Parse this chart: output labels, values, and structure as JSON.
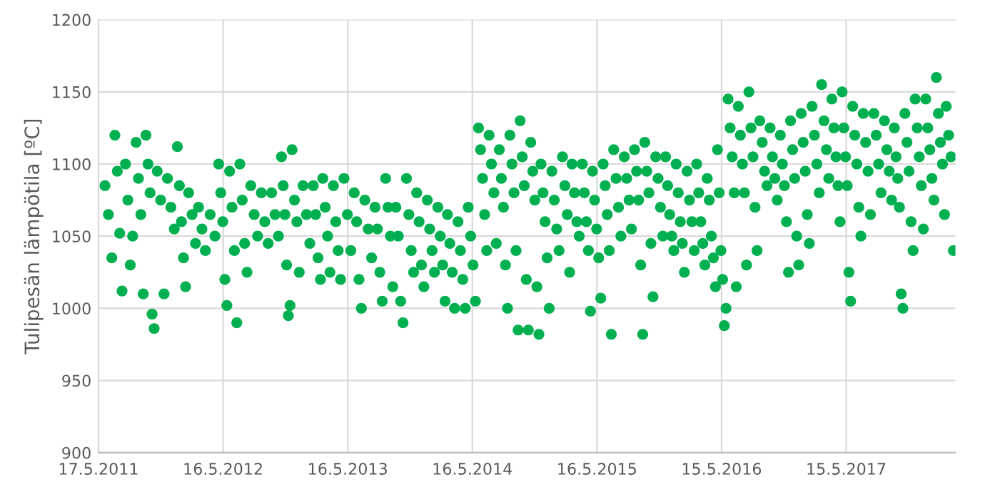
{
  "chart_data": {
    "type": "scatter",
    "ylabel": "Tulipesän lämpötila [ºC]",
    "xlim": [
      "2011-05-17",
      "2018-03-31"
    ],
    "xticks": [
      {
        "value": "2011-05-17",
        "label": "17.5.2011"
      },
      {
        "value": "2012-05-16",
        "label": "16.5.2012"
      },
      {
        "value": "2013-05-16",
        "label": "16.5.2013"
      },
      {
        "value": "2014-05-16",
        "label": "16.5.2014"
      },
      {
        "value": "2015-05-16",
        "label": "16.5.2015"
      },
      {
        "value": "2016-05-15",
        "label": "15.5.2016"
      },
      {
        "value": "2017-05-15",
        "label": "15.5.2017"
      }
    ],
    "ylim": [
      900,
      1200
    ],
    "yticks": [
      900,
      950,
      1000,
      1050,
      1100,
      1150,
      1200
    ],
    "grid": true,
    "marker": "circle",
    "series": [
      {
        "color": "#00b050",
        "x": [
          "2011-06-05",
          "2011-06-15",
          "2011-06-25",
          "2011-07-04",
          "2011-07-11",
          "2011-07-18",
          "2011-07-25",
          "2011-08-04",
          "2011-08-11",
          "2011-08-18",
          "2011-08-25",
          "2011-09-04",
          "2011-09-11",
          "2011-09-18",
          "2011-09-25",
          "2011-10-03",
          "2011-10-09",
          "2011-10-15",
          "2011-10-21",
          "2011-10-27",
          "2011-11-05",
          "2011-11-15",
          "2011-11-25",
          "2011-12-05",
          "2011-12-15",
          "2011-12-25",
          "2012-01-03",
          "2012-01-09",
          "2012-01-15",
          "2012-01-21",
          "2012-01-27",
          "2012-02-05",
          "2012-02-15",
          "2012-02-25",
          "2012-03-05",
          "2012-03-15",
          "2012-03-25",
          "2012-04-08",
          "2012-04-22",
          "2012-05-03",
          "2012-05-09",
          "2012-05-15",
          "2012-05-21",
          "2012-05-27",
          "2012-06-04",
          "2012-06-11",
          "2012-06-18",
          "2012-06-25",
          "2012-07-04",
          "2012-07-11",
          "2012-07-18",
          "2012-07-25",
          "2012-08-05",
          "2012-08-15",
          "2012-08-25",
          "2012-09-05",
          "2012-09-15",
          "2012-09-25",
          "2012-10-05",
          "2012-10-15",
          "2012-10-25",
          "2012-11-03",
          "2012-11-08",
          "2012-11-13",
          "2012-11-18",
          "2012-11-23",
          "2012-11-28",
          "2012-12-04",
          "2012-12-11",
          "2012-12-18",
          "2012-12-25",
          "2013-01-05",
          "2013-01-15",
          "2013-01-25",
          "2013-02-04",
          "2013-02-11",
          "2013-02-18",
          "2013-02-25",
          "2013-03-04",
          "2013-03-11",
          "2013-03-18",
          "2013-03-25",
          "2013-04-04",
          "2013-04-11",
          "2013-04-18",
          "2013-04-25",
          "2013-05-05",
          "2013-05-15",
          "2013-05-25",
          "2013-06-04",
          "2013-06-11",
          "2013-06-18",
          "2013-06-25",
          "2013-07-05",
          "2013-07-15",
          "2013-07-25",
          "2013-08-04",
          "2013-08-11",
          "2013-08-18",
          "2013-08-25",
          "2013-09-04",
          "2013-09-11",
          "2013-09-18",
          "2013-09-25",
          "2013-10-04",
          "2013-10-11",
          "2013-10-18",
          "2013-10-25",
          "2013-11-04",
          "2013-11-11",
          "2013-11-18",
          "2013-11-25",
          "2013-12-04",
          "2013-12-11",
          "2013-12-18",
          "2013-12-25",
          "2014-01-04",
          "2014-01-11",
          "2014-01-18",
          "2014-01-25",
          "2014-02-04",
          "2014-02-11",
          "2014-02-18",
          "2014-02-25",
          "2014-03-04",
          "2014-03-11",
          "2014-03-18",
          "2014-03-25",
          "2014-04-04",
          "2014-04-11",
          "2014-04-18",
          "2014-04-25",
          "2014-05-04",
          "2014-05-11",
          "2014-05-18",
          "2014-05-25",
          "2014-06-03",
          "2014-06-09",
          "2014-06-15",
          "2014-06-21",
          "2014-06-27",
          "2014-07-04",
          "2014-07-11",
          "2014-07-18",
          "2014-07-25",
          "2014-08-03",
          "2014-08-09",
          "2014-08-15",
          "2014-08-21",
          "2014-08-27",
          "2014-09-03",
          "2014-09-09",
          "2014-09-15",
          "2014-09-21",
          "2014-09-27",
          "2014-10-03",
          "2014-10-09",
          "2014-10-15",
          "2014-10-21",
          "2014-10-27",
          "2014-11-03",
          "2014-11-09",
          "2014-11-15",
          "2014-11-21",
          "2014-11-27",
          "2014-12-03",
          "2014-12-09",
          "2014-12-15",
          "2014-12-21",
          "2014-12-27",
          "2015-01-04",
          "2015-01-11",
          "2015-01-18",
          "2015-01-25",
          "2015-02-04",
          "2015-02-11",
          "2015-02-18",
          "2015-02-25",
          "2015-03-04",
          "2015-03-11",
          "2015-03-18",
          "2015-03-25",
          "2015-04-03",
          "2015-04-09",
          "2015-04-15",
          "2015-04-21",
          "2015-04-27",
          "2015-05-03",
          "2015-05-09",
          "2015-05-15",
          "2015-05-21",
          "2015-05-27",
          "2015-06-03",
          "2015-06-09",
          "2015-06-15",
          "2015-06-21",
          "2015-06-27",
          "2015-07-04",
          "2015-07-11",
          "2015-07-18",
          "2015-07-25",
          "2015-08-04",
          "2015-08-11",
          "2015-08-18",
          "2015-08-25",
          "2015-09-03",
          "2015-09-09",
          "2015-09-15",
          "2015-09-21",
          "2015-09-27",
          "2015-10-03",
          "2015-10-09",
          "2015-10-15",
          "2015-10-21",
          "2015-10-27",
          "2015-11-04",
          "2015-11-11",
          "2015-11-18",
          "2015-11-25",
          "2015-12-03",
          "2015-12-09",
          "2015-12-15",
          "2015-12-21",
          "2015-12-27",
          "2016-01-03",
          "2016-01-09",
          "2016-01-15",
          "2016-01-21",
          "2016-01-27",
          "2016-02-04",
          "2016-02-11",
          "2016-02-18",
          "2016-02-25",
          "2016-03-03",
          "2016-03-09",
          "2016-03-15",
          "2016-03-21",
          "2016-03-27",
          "2016-04-03",
          "2016-04-09",
          "2016-04-15",
          "2016-04-21",
          "2016-04-27",
          "2016-05-03",
          "2016-05-08",
          "2016-05-13",
          "2016-05-18",
          "2016-05-23",
          "2016-05-28",
          "2016-06-03",
          "2016-06-09",
          "2016-06-15",
          "2016-06-21",
          "2016-06-27",
          "2016-07-03",
          "2016-07-09",
          "2016-07-15",
          "2016-07-21",
          "2016-07-27",
          "2016-08-03",
          "2016-08-09",
          "2016-08-15",
          "2016-08-21",
          "2016-08-27",
          "2016-09-04",
          "2016-09-11",
          "2016-09-18",
          "2016-09-25",
          "2016-10-04",
          "2016-10-11",
          "2016-10-18",
          "2016-10-25",
          "2016-11-03",
          "2016-11-09",
          "2016-11-15",
          "2016-11-21",
          "2016-11-27",
          "2016-12-03",
          "2016-12-09",
          "2016-12-15",
          "2016-12-21",
          "2016-12-27",
          "2017-01-03",
          "2017-01-09",
          "2017-01-15",
          "2017-01-21",
          "2017-01-27",
          "2017-02-04",
          "2017-02-11",
          "2017-02-18",
          "2017-02-25",
          "2017-03-04",
          "2017-03-11",
          "2017-03-18",
          "2017-03-25",
          "2017-04-03",
          "2017-04-09",
          "2017-04-15",
          "2017-04-21",
          "2017-04-27",
          "2017-05-03",
          "2017-05-08",
          "2017-05-13",
          "2017-05-18",
          "2017-05-23",
          "2017-05-28",
          "2017-06-03",
          "2017-06-09",
          "2017-06-15",
          "2017-06-21",
          "2017-06-27",
          "2017-07-04",
          "2017-07-11",
          "2017-07-18",
          "2017-07-25",
          "2017-08-04",
          "2017-08-11",
          "2017-08-18",
          "2017-08-25",
          "2017-09-04",
          "2017-09-11",
          "2017-09-18",
          "2017-09-25",
          "2017-10-03",
          "2017-10-08",
          "2017-10-13",
          "2017-10-18",
          "2017-10-23",
          "2017-10-28",
          "2017-11-03",
          "2017-11-09",
          "2017-11-15",
          "2017-11-21",
          "2017-11-27",
          "2017-12-03",
          "2017-12-09",
          "2017-12-15",
          "2017-12-21",
          "2017-12-27",
          "2018-01-03",
          "2018-01-09",
          "2018-01-15",
          "2018-01-21",
          "2018-01-27",
          "2018-02-03",
          "2018-02-09",
          "2018-02-15",
          "2018-02-21",
          "2018-02-27",
          "2018-03-04",
          "2018-03-11",
          "2018-03-18",
          "2018-03-25"
        ],
        "values": [
          1085,
          1065,
          1035,
          1120,
          1095,
          1052,
          1012,
          1100,
          1075,
          1030,
          1050,
          1115,
          1090,
          1065,
          1010,
          1120,
          1100,
          1080,
          996,
          986,
          1095,
          1075,
          1010,
          1090,
          1070,
          1055,
          1112,
          1085,
          1060,
          1035,
          1015,
          1080,
          1065,
          1045,
          1070,
          1055,
          1040,
          1065,
          1050,
          1100,
          1080,
          1060,
          1020,
          1002,
          1095,
          1070,
          1040,
          990,
          1100,
          1075,
          1045,
          1025,
          1085,
          1065,
          1050,
          1080,
          1060,
          1045,
          1080,
          1065,
          1050,
          1105,
          1085,
          1065,
          1030,
          995,
          1002,
          1110,
          1075,
          1060,
          1025,
          1085,
          1065,
          1045,
          1085,
          1065,
          1035,
          1020,
          1090,
          1070,
          1050,
          1025,
          1085,
          1060,
          1040,
          1020,
          1090,
          1065,
          1040,
          1080,
          1060,
          1020,
          1000,
          1075,
          1055,
          1035,
          1070,
          1055,
          1025,
          1005,
          1090,
          1070,
          1050,
          1015,
          1070,
          1050,
          1005,
          990,
          1090,
          1065,
          1040,
          1025,
          1080,
          1060,
          1030,
          1015,
          1075,
          1055,
          1040,
          1025,
          1070,
          1050,
          1030,
          1005,
          1065,
          1045,
          1025,
          1000,
          1060,
          1040,
          1020,
          1000,
          1070,
          1050,
          1030,
          1005,
          1125,
          1110,
          1090,
          1065,
          1040,
          1120,
          1100,
          1080,
          1045,
          1110,
          1090,
          1070,
          1030,
          1000,
          1120,
          1100,
          1080,
          1040,
          985,
          1130,
          1105,
          1085,
          1020,
          985,
          1115,
          1095,
          1075,
          1015,
          982,
          1100,
          1080,
          1060,
          1035,
          1000,
          1095,
          1075,
          1055,
          1040,
          1105,
          1085,
          1065,
          1025,
          1100,
          1080,
          1060,
          1050,
          1100,
          1080,
          1060,
          1040,
          998,
          1095,
          1075,
          1055,
          1035,
          1007,
          1100,
          1085,
          1065,
          1040,
          982,
          1110,
          1090,
          1070,
          1050,
          1105,
          1090,
          1075,
          1055,
          1110,
          1095,
          1075,
          1030,
          982,
          1115,
          1095,
          1080,
          1045,
          1008,
          1105,
          1090,
          1070,
          1050,
          1105,
          1085,
          1065,
          1050,
          1040,
          1100,
          1080,
          1060,
          1045,
          1025,
          1095,
          1075,
          1060,
          1040,
          1100,
          1080,
          1060,
          1045,
          1030,
          1090,
          1075,
          1050,
          1035,
          1015,
          1110,
          1080,
          1040,
          1020,
          988,
          1000,
          1145,
          1125,
          1105,
          1080,
          1015,
          1140,
          1120,
          1100,
          1080,
          1030,
          1150,
          1125,
          1105,
          1070,
          1040,
          1130,
          1115,
          1095,
          1085,
          1125,
          1105,
          1090,
          1075,
          1120,
          1100,
          1085,
          1060,
          1025,
          1130,
          1110,
          1090,
          1050,
          1030,
          1135,
          1115,
          1095,
          1065,
          1045,
          1140,
          1120,
          1100,
          1080,
          1155,
          1130,
          1110,
          1090,
          1145,
          1125,
          1105,
          1085,
          1060,
          1150,
          1125,
          1105,
          1085,
          1025,
          1005,
          1140,
          1120,
          1100,
          1070,
          1050,
          1135,
          1115,
          1095,
          1065,
          1135,
          1120,
          1100,
          1080,
          1130,
          1110,
          1095,
          1075,
          1125,
          1105,
          1090,
          1070,
          1010,
          1000,
          1135,
          1115,
          1095,
          1060,
          1040,
          1145,
          1125,
          1105,
          1085,
          1055,
          1145,
          1125,
          1110,
          1090,
          1075,
          1160,
          1135,
          1115,
          1100,
          1065,
          1140,
          1120,
          1105,
          1040
        ]
      }
    ]
  }
}
